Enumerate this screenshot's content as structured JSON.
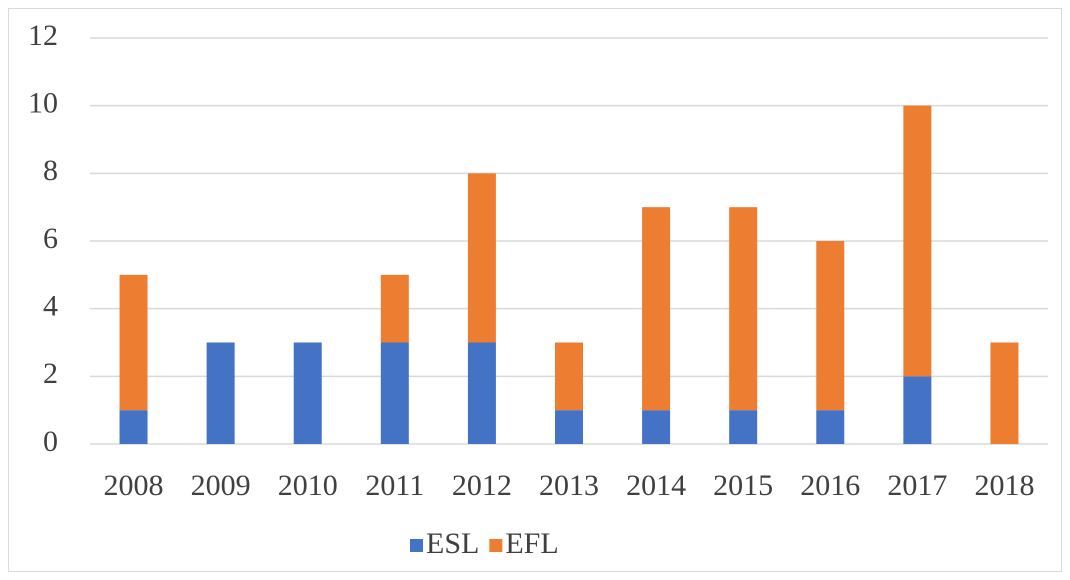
{
  "chart_data": {
    "type": "stacked_bar",
    "categories": [
      "2008",
      "2009",
      "2010",
      "2011",
      "2012",
      "2013",
      "2014",
      "2015",
      "2016",
      "2017",
      "2018"
    ],
    "series": [
      {
        "name": "ESL",
        "color": "#4472c4",
        "values": [
          1,
          3,
          3,
          3,
          3,
          1,
          1,
          1,
          1,
          2,
          0
        ]
      },
      {
        "name": "EFL",
        "color": "#ed7d31",
        "values": [
          4,
          0,
          0,
          2,
          5,
          2,
          6,
          6,
          5,
          8,
          3
        ]
      }
    ],
    "ylim": [
      0,
      12
    ],
    "yticks": [
      0,
      2,
      4,
      6,
      8,
      10,
      12
    ],
    "grid": true,
    "legend": "bottom"
  }
}
